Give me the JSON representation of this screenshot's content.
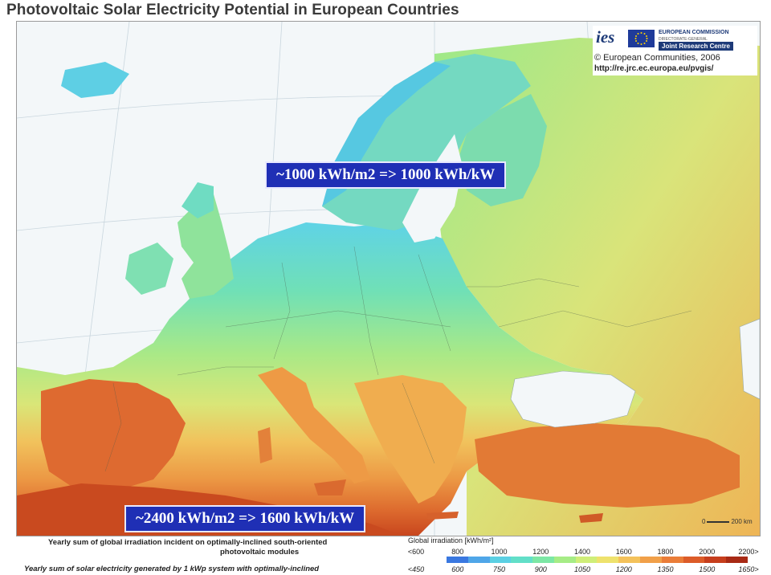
{
  "title": "Photovoltaic Solar Electricity Potential in European Countries",
  "logo": {
    "ies": "ies",
    "commission": "EUROPEAN COMMISSION",
    "directorate": "DIRECTORATE-GENERAL",
    "jrc": "Joint Research Centre",
    "copyright": "© European Communities, 2006",
    "url": "http://re.jrc.ec.europa.eu/pvgis/"
  },
  "callouts": {
    "north": "~1000 kWh/m2 => 1000 kWh/kW",
    "south": "~2400 kWh/m2 => 1600 kWh/kW"
  },
  "scale_label": "200 km",
  "scale_zero": "0",
  "legend": {
    "line1": "Yearly sum of global irradiation incident on optimally-inclined south-oriented",
    "line2": "photovoltaic modules",
    "line3": "Yearly sum of solar electricity generated by 1 kWp system with optimally-inclined",
    "irradiation_header": "Global irradiation [kWh/m²]",
    "irradiation_ticks": [
      "<600",
      "800",
      "1000",
      "1200",
      "1400",
      "1600",
      "1800",
      "2000",
      "2200>"
    ],
    "electricity_ticks": [
      "<450",
      "600",
      "750",
      "900",
      "1050",
      "1200",
      "1350",
      "1500",
      "1650>"
    ],
    "colors": [
      "#3a78e0",
      "#4fa6e8",
      "#5bd0e3",
      "#62dfc8",
      "#7ce7a5",
      "#a6ec86",
      "#cfee79",
      "#eee26d",
      "#f4c25b",
      "#f1a049",
      "#ea7d38",
      "#dc5c29",
      "#c63e1d",
      "#a82a15"
    ]
  }
}
